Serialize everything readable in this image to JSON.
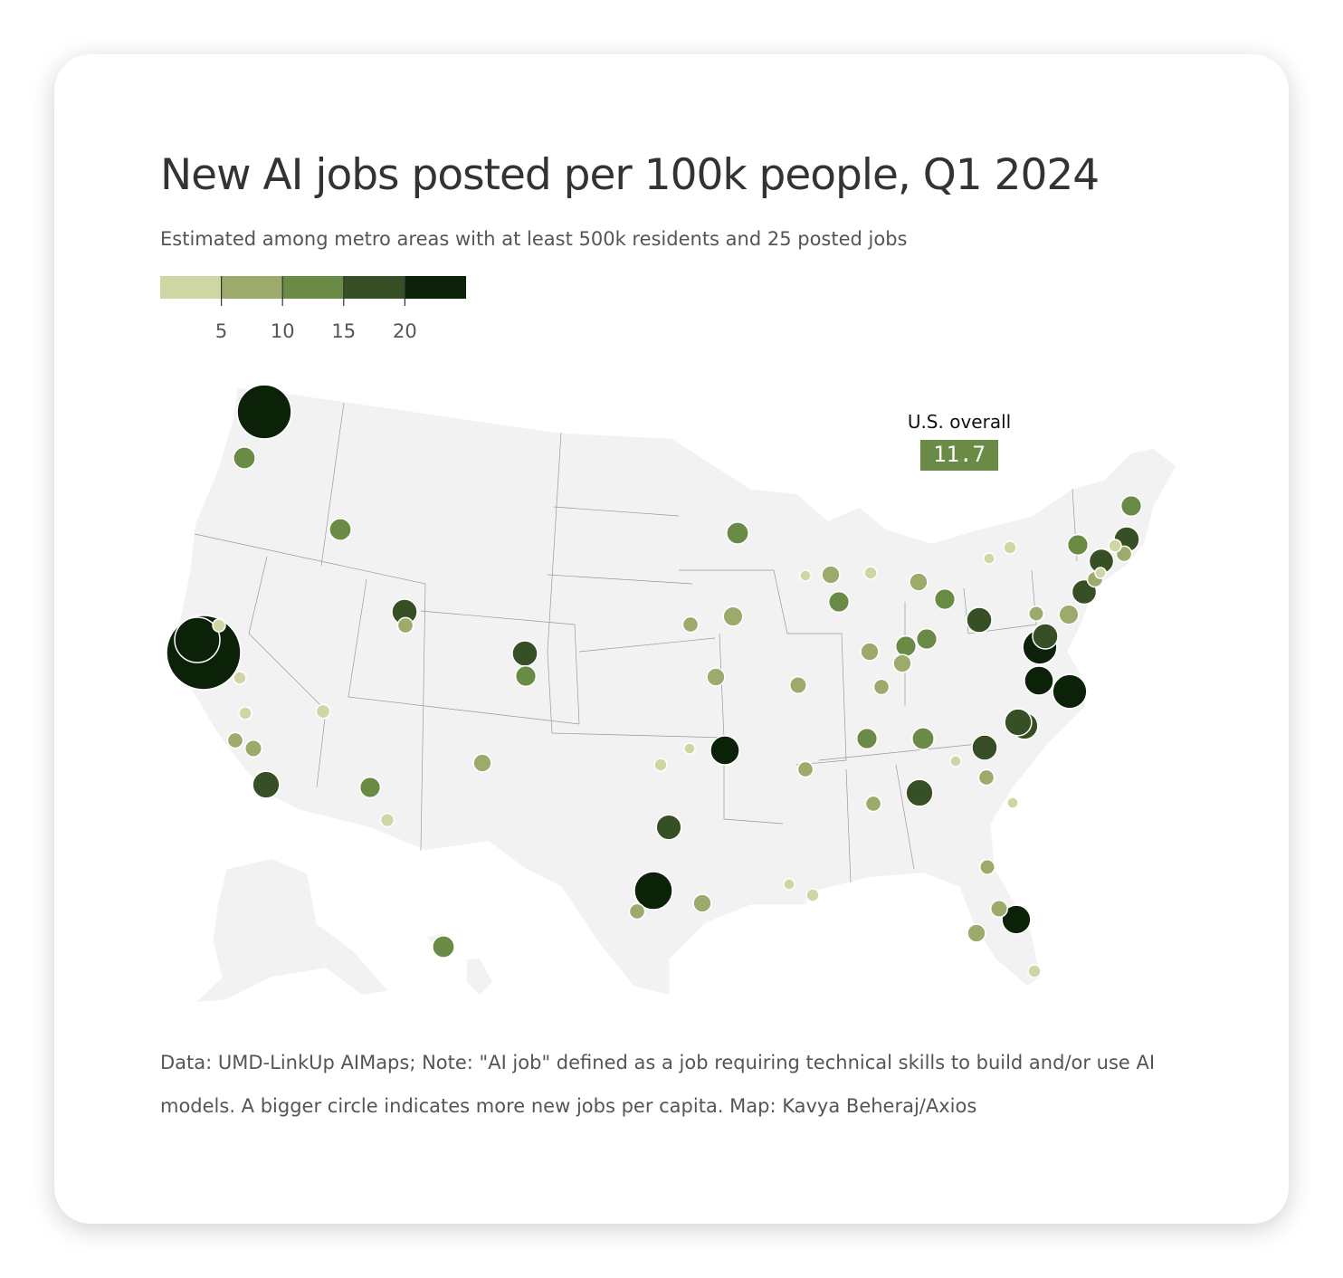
{
  "chart_data": {
    "type": "bubble-map",
    "title": "New AI jobs posted per 100k people, Q1 2024",
    "subtitle": "Estimated among metro areas with at least 500k residents and 25 posted jobs",
    "note": "Data: UMD-LinkUp AIMaps; Note: \"AI job\" defined as a job requiring technical skills to build and/or use AI models. A bigger circle indicates more new jobs per capita. Map: Kavya Beheraj/Axios",
    "legend": {
      "xlim": [
        0,
        25
      ],
      "xticks": [
        5,
        10,
        15,
        20
      ],
      "colors": [
        "#cfd6a3",
        "#9caa6c",
        "#6a8b45",
        "#364f24",
        "#0b2108"
      ]
    },
    "annotation": {
      "label": "U.S. overall",
      "value": 11.7
    },
    "values": [
      73,
      12,
      12,
      16,
      6,
      137,
      51,
      4,
      4,
      4,
      6,
      7,
      18,
      4.8,
      10.5,
      4.5,
      8,
      16,
      10.5,
      12,
      6,
      9.5,
      8,
      4,
      3,
      21,
      15.5,
      36,
      6,
      8,
      3,
      4,
      6,
      7,
      10.5,
      8,
      3,
      4,
      8,
      10.5,
      8,
      10.5,
      10.5,
      8,
      6,
      10.5,
      12,
      16,
      18,
      6,
      16,
      3,
      6,
      3,
      18,
      18,
      21,
      29,
      29,
      16,
      5.5,
      9.5,
      15,
      6,
      3,
      15,
      4,
      6,
      16,
      10.5,
      4,
      3,
      10.5,
      5.5,
      7,
      8,
      20.5,
      4,
      12
    ]
  }
}
